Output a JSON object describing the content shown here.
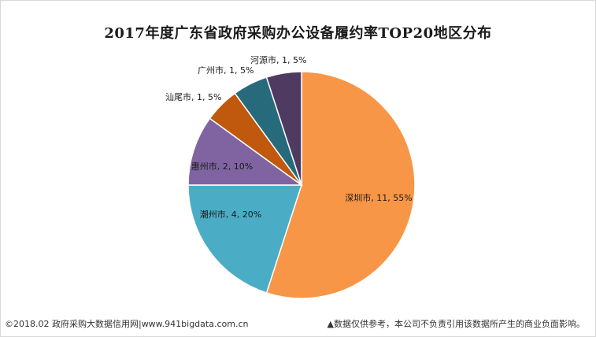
{
  "chart_data": {
    "type": "pie",
    "title": "2017年度广东省政府采购办公设备履约率TOP20地区分布",
    "slices": [
      {
        "name": "深圳市",
        "value": 11,
        "percent": "55%",
        "color": "#F79646",
        "label": "深圳市, 11, 55%"
      },
      {
        "name": "潮州市",
        "value": 4,
        "percent": "20%",
        "color": "#4BACC6",
        "label": "潮州市, 4, 20%"
      },
      {
        "name": "惠州市",
        "value": 2,
        "percent": "10%",
        "color": "#8064A2",
        "label": "惠州市, 2, 10%"
      },
      {
        "name": "汕尾市",
        "value": 1,
        "percent": "5%",
        "color": "#C0580D",
        "label": "汕尾市, 1, 5%"
      },
      {
        "name": "广州市",
        "value": 1,
        "percent": "5%",
        "color": "#276A7C",
        "label": "广州市, 1, 5%"
      },
      {
        "name": "河源市",
        "value": 1,
        "percent": "5%",
        "color": "#4F3B62",
        "label": "河源市, 1, 5%"
      }
    ]
  },
  "footer": {
    "left": "©2018.02 政府采购大数据信用网|www.941bigdata.com.cn",
    "right": "▲数据仅供参考，本公司不负责引用该数据所产生的商业负面影响。"
  }
}
